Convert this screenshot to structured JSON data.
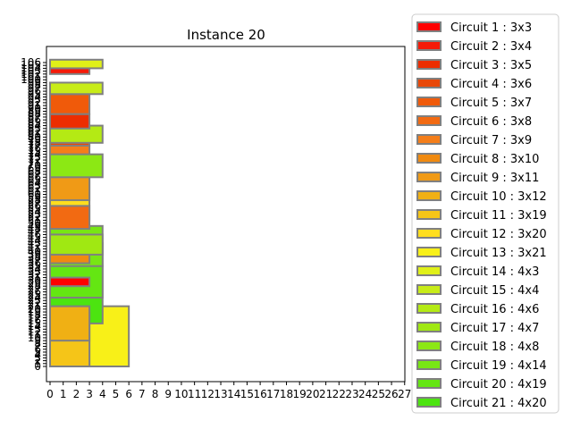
{
  "chart_data": {
    "type": "bar",
    "title": "Instance 20",
    "xlabel": "",
    "ylabel": "",
    "xlim": [
      0,
      27
    ],
    "ylim": [
      0,
      106
    ],
    "plate_width": 27,
    "x_ticks": [
      0,
      1,
      2,
      3,
      4,
      5,
      6,
      7,
      8,
      9,
      10,
      11,
      12,
      13,
      14,
      15,
      16,
      17,
      18,
      19,
      20,
      21,
      22,
      23,
      24,
      25,
      26,
      27
    ],
    "y_ticks": [
      0,
      1,
      2,
      3,
      4,
      5,
      6,
      7,
      8,
      9,
      10,
      11,
      12,
      13,
      14,
      15,
      16,
      17,
      18,
      19,
      20,
      21,
      22,
      23,
      24,
      25,
      26,
      27,
      28,
      29,
      30,
      31,
      32,
      33,
      34,
      35,
      36,
      37,
      38,
      39,
      40,
      41,
      42,
      43,
      44,
      45,
      46,
      47,
      48,
      49,
      50,
      51,
      52,
      53,
      54,
      55,
      56,
      57,
      58,
      59,
      60,
      61,
      62,
      63,
      64,
      65,
      66,
      67,
      68,
      69,
      70,
      71,
      72,
      73,
      74,
      75,
      76,
      77,
      78,
      79,
      80,
      81,
      82,
      83,
      84,
      85,
      86,
      87,
      88,
      89,
      90,
      91,
      92,
      93,
      94,
      95,
      96,
      97,
      98,
      99,
      100,
      101,
      102,
      103,
      104,
      105,
      106
    ],
    "legend_position": "outside right",
    "edge_color": "#808080",
    "series": [
      {
        "name": "Circuit 1 : 3x3",
        "w": 3,
        "h": 3,
        "x": 0,
        "y": 28,
        "color": "#ff0000"
      },
      {
        "name": "Circuit 2 : 3x4",
        "w": 3,
        "h": 4,
        "x": 0,
        "y": 102,
        "color": "#f51a08"
      },
      {
        "name": "Circuit 3 : 3x5",
        "w": 3,
        "h": 5,
        "x": 0,
        "y": 83,
        "color": "#ec2d00"
      },
      {
        "name": "Circuit 4 : 3x6",
        "w": 3,
        "h": 6,
        "x": 0,
        "y": 77,
        "color": "#e84808"
      },
      {
        "name": "Circuit 5 : 3x7",
        "w": 3,
        "h": 7,
        "x": 0,
        "y": 88,
        "color": "#f05a0a"
      },
      {
        "name": "Circuit 6 : 3x8",
        "w": 3,
        "h": 8,
        "x": 0,
        "y": 48,
        "color": "#f26a12"
      },
      {
        "name": "Circuit 7 : 3x9",
        "w": 3,
        "h": 9,
        "x": 0,
        "y": 69,
        "color": "#f47e1a"
      },
      {
        "name": "Circuit 8 : 3x10",
        "w": 3,
        "h": 10,
        "x": 0,
        "y": 36,
        "color": "#f08a10"
      },
      {
        "name": "Circuit 9 : 3x11",
        "w": 3,
        "h": 11,
        "x": 0,
        "y": 58,
        "color": "#f09a16"
      },
      {
        "name": "Circuit 10 : 3x12",
        "w": 3,
        "h": 12,
        "x": 0,
        "y": 9,
        "color": "#f0b014"
      },
      {
        "name": "Circuit 11 : 3x19",
        "w": 3,
        "h": 19,
        "x": 0,
        "y": 0,
        "color": "#f5c518"
      },
      {
        "name": "Circuit 12 : 3x20",
        "w": 3,
        "h": 20,
        "x": 0,
        "y": 51,
        "color": "#ffde1e"
      },
      {
        "name": "Circuit 13 : 3x21",
        "w": 3,
        "h": 21,
        "x": 3,
        "y": 0,
        "color": "#f8f018"
      },
      {
        "name": "Circuit 14 : 4x3",
        "w": 4,
        "h": 3,
        "x": 0,
        "y": 104,
        "color": "#e0f018"
      },
      {
        "name": "Circuit 15 : 4x4",
        "w": 4,
        "h": 4,
        "x": 0,
        "y": 95,
        "color": "#c8ec18"
      },
      {
        "name": "Circuit 16 : 4x6",
        "w": 4,
        "h": 6,
        "x": 0,
        "y": 78,
        "color": "#b4ea14"
      },
      {
        "name": "Circuit 17 : 4x7",
        "w": 4,
        "h": 7,
        "x": 0,
        "y": 39,
        "color": "#a0e812"
      },
      {
        "name": "Circuit 18 : 4x8",
        "w": 4,
        "h": 8,
        "x": 0,
        "y": 66,
        "color": "#8ce814"
      },
      {
        "name": "Circuit 19 : 4x14",
        "w": 4,
        "h": 14,
        "x": 0,
        "y": 35,
        "color": "#78e614"
      },
      {
        "name": "Circuit 20 : 4x19",
        "w": 4,
        "h": 19,
        "x": 0,
        "y": 24,
        "color": "#64e612"
      },
      {
        "name": "Circuit 21 : 4x20",
        "w": 4,
        "h": 20,
        "x": 0,
        "y": 15,
        "color": "#4ce410"
      }
    ]
  }
}
